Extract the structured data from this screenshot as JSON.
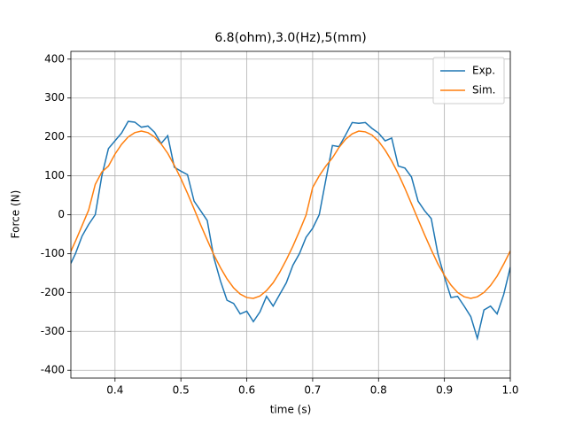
{
  "chart_data": {
    "type": "line",
    "title": "6.8(ohm),3.0(Hz),5(mm)",
    "x_label": "time (s)",
    "y_label": "Force (N)",
    "x": [
      0.333,
      0.34,
      0.35,
      0.36,
      0.37,
      0.38,
      0.39,
      0.4,
      0.41,
      0.42,
      0.43,
      0.44,
      0.45,
      0.46,
      0.47,
      0.48,
      0.49,
      0.5,
      0.51,
      0.52,
      0.53,
      0.54,
      0.55,
      0.56,
      0.57,
      0.58,
      0.59,
      0.6,
      0.61,
      0.62,
      0.63,
      0.64,
      0.65,
      0.66,
      0.67,
      0.68,
      0.69,
      0.7,
      0.71,
      0.72,
      0.73,
      0.74,
      0.75,
      0.76,
      0.77,
      0.78,
      0.79,
      0.8,
      0.81,
      0.82,
      0.83,
      0.84,
      0.85,
      0.86,
      0.87,
      0.88,
      0.89,
      0.9,
      0.91,
      0.92,
      0.93,
      0.94,
      0.95,
      0.96,
      0.97,
      0.98,
      0.99,
      1.0
    ],
    "series": [
      {
        "name": "Exp.",
        "color": "#1f77b4",
        "values": [
          -125,
          -100,
          -55,
          -25,
          0,
          100,
          170,
          190,
          210,
          240,
          238,
          225,
          228,
          212,
          183,
          203,
          122,
          112,
          103,
          35,
          10,
          -15,
          -110,
          -170,
          -220,
          -228,
          -255,
          -248,
          -275,
          -250,
          -210,
          -235,
          -205,
          -175,
          -130,
          -100,
          -58,
          -35,
          0,
          90,
          178,
          175,
          205,
          237,
          235,
          237,
          222,
          210,
          190,
          197,
          125,
          120,
          97,
          35,
          10,
          -10,
          -100,
          -160,
          -213,
          -210,
          -235,
          -262,
          -318,
          -245,
          -235,
          -255,
          -205,
          -135
        ]
      },
      {
        "name": "Sim.",
        "color": "#ff7f0e",
        "values": [
          -94,
          -68,
          -28,
          12,
          78,
          110,
          125,
          156,
          181,
          200,
          211,
          215,
          211,
          200,
          182,
          158,
          127,
          93,
          55,
          15,
          -26,
          -65,
          -103,
          -136,
          -165,
          -188,
          -204,
          -213,
          -215,
          -209,
          -195,
          -175,
          -148,
          -116,
          -81,
          -42,
          -1,
          70,
          100,
          125,
          146,
          173,
          194,
          208,
          215,
          213,
          205,
          189,
          166,
          138,
          105,
          68,
          28,
          -12,
          -52,
          -90,
          -126,
          -156,
          -181,
          -200,
          -211,
          -215,
          -211,
          -200,
          -182,
          -158,
          -127,
          -93
        ]
      }
    ],
    "xlim": [
      0.333,
      1.0
    ],
    "xticks": [
      0.4,
      0.5,
      0.6,
      0.7,
      0.8,
      0.9,
      {
        "value": 1,
        "label": "1.0"
      }
    ],
    "ylim": [
      -420,
      420
    ],
    "yticks": [
      -400,
      -300,
      -200,
      -100,
      0,
      100,
      200,
      300,
      400
    ],
    "grid": true,
    "legend": "upper right"
  }
}
